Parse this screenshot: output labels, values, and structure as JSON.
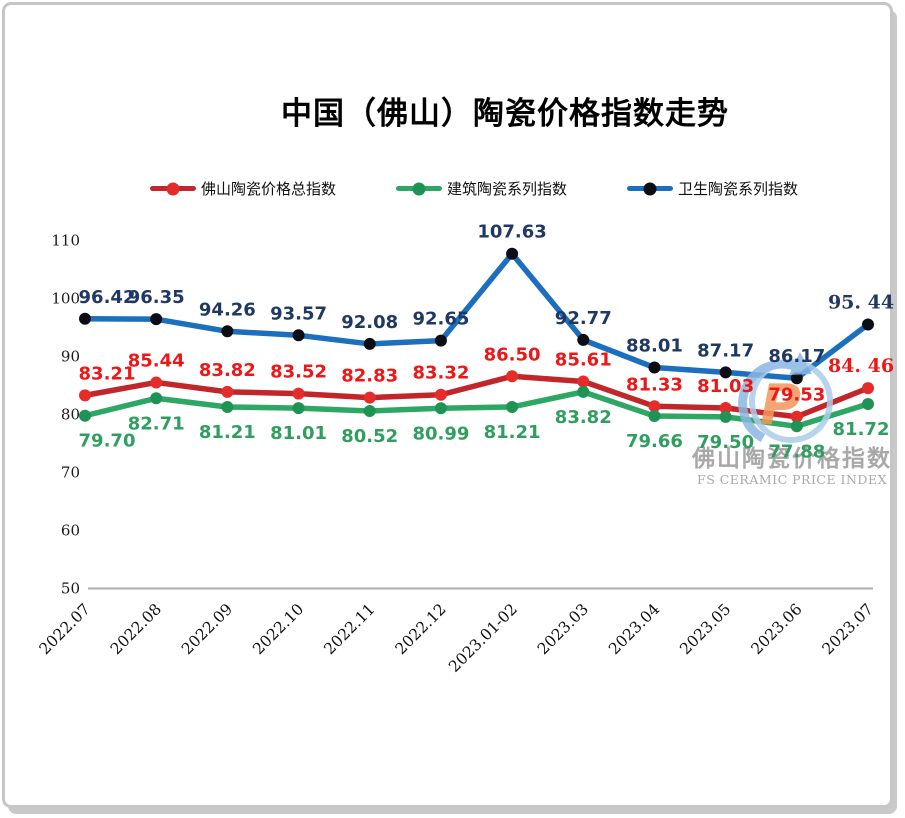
{
  "title": "中国（佛山）陶瓷价格指数走势",
  "frame": {
    "border_color": "#c6c6c6",
    "background": "#ffffff"
  },
  "legend": [
    {
      "label": "佛山陶瓷价格总指数",
      "line_color": "#c1272a",
      "marker_color": "#e62b2b"
    },
    {
      "label": "建筑陶瓷系列指数",
      "line_color": "#2ea764",
      "marker_color": "#1f9355"
    },
    {
      "label": "卫生陶瓷系列指数",
      "line_color": "#1b6fbe",
      "marker_color": "#0d0d16"
    }
  ],
  "watermark": {
    "cn": "佛山陶瓷价格指数",
    "en": "FS CERAMIC PRICE INDEX",
    "logo_letter": "P",
    "logo_color": "#f2975c",
    "circle_color": "#abcdea",
    "arrow_color": "#8ab7e2",
    "text_color": "#9a9a9a"
  },
  "chart_data": {
    "type": "line",
    "title": "中国（佛山）陶瓷价格指数走势",
    "categories": [
      "2022.07",
      "2022.08",
      "2022.09",
      "2022.10",
      "2022.11",
      "2022.12",
      "2023.01-02",
      "2023.03",
      "2023.04",
      "2023.05",
      "2023.06",
      "2023.07"
    ],
    "xlabel": "",
    "ylabel": "",
    "ylim": [
      50,
      110
    ],
    "yticks": [
      110,
      100,
      90,
      80,
      70,
      60,
      50
    ],
    "grid": false,
    "legend_position": "top",
    "series": [
      {
        "id": "total",
        "name": "佛山陶瓷价格总指数",
        "values": [
          83.21,
          85.44,
          83.82,
          83.52,
          82.83,
          83.32,
          86.5,
          85.61,
          81.33,
          81.03,
          79.53,
          84.46
        ],
        "labels": [
          "83.21",
          "85.44",
          "83.82",
          "83.52",
          "82.83",
          "83.32",
          "86.50",
          "85.61",
          "81.33",
          "81.03",
          "79.53",
          "84. 46"
        ],
        "alt_font_label_indices": [
          11
        ],
        "line_color": "#c1272a",
        "marker_color": "#e62b2b",
        "label_color": "#ee1616",
        "label_position": "above"
      },
      {
        "id": "building",
        "name": "建筑陶瓷系列指数",
        "values": [
          79.7,
          82.71,
          81.21,
          81.01,
          80.52,
          80.99,
          81.21,
          83.82,
          79.66,
          79.5,
          77.88,
          81.72
        ],
        "labels": [
          "79.70",
          "82.71",
          "81.21",
          "81.01",
          "80.52",
          "80.99",
          "81.21",
          "83.82",
          "79.66",
          "79.50",
          "77.88",
          "81.72"
        ],
        "alt_font_label_indices": [],
        "line_color": "#2ea764",
        "marker_color": "#1f9355",
        "label_color": "#2f9e5f",
        "label_position": "below"
      },
      {
        "id": "sanitary",
        "name": "卫生陶瓷系列指数",
        "values": [
          96.42,
          96.35,
          94.26,
          93.57,
          92.08,
          92.65,
          107.63,
          92.77,
          88.01,
          87.17,
          86.17,
          95.44
        ],
        "labels": [
          "96.42",
          "96.35",
          "94.26",
          "93.57",
          "92.08",
          "92.65",
          "107.63",
          "92.77",
          "88.01",
          "87.17",
          "86.17",
          "95. 44"
        ],
        "alt_font_label_indices": [
          11
        ],
        "line_color": "#1b6fbe",
        "marker_color": "#0d0d16",
        "label_color": "#1f3864",
        "label_position": "above"
      }
    ]
  }
}
